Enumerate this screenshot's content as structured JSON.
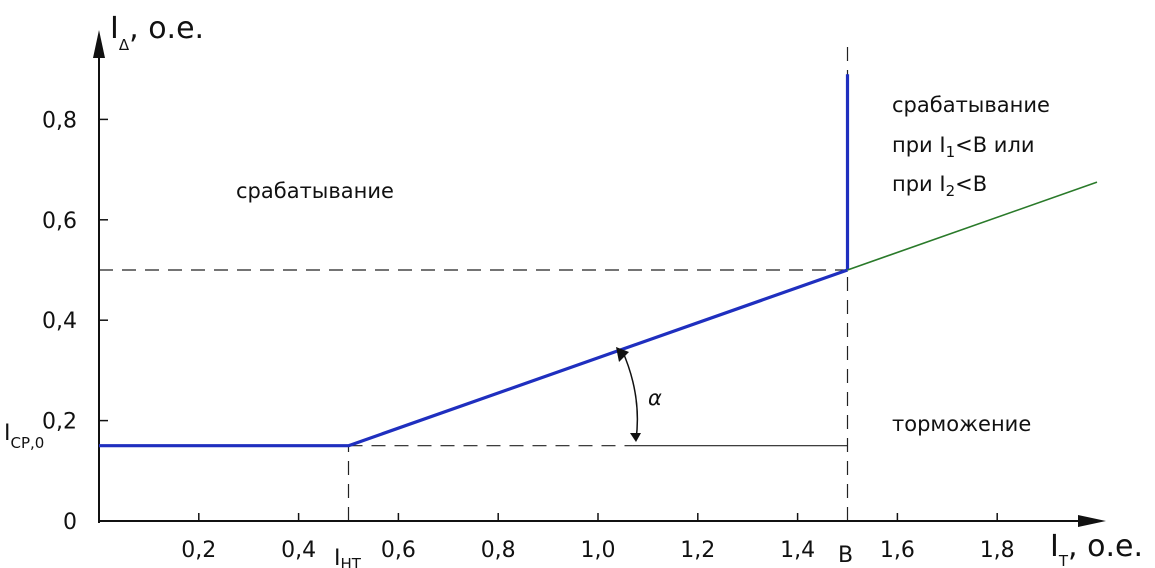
{
  "chart_data": {
    "type": "line",
    "xlim": [
      0,
      2.1
    ],
    "ylim": [
      0,
      0.9
    ],
    "x_ticks": [
      "0,2",
      "0,4",
      "0,6",
      "0,8",
      "1,0",
      "1,2",
      "1,4",
      "1,6",
      "1,8"
    ],
    "x_tick_values": [
      0.2,
      0.4,
      0.6,
      0.8,
      1.0,
      1.2,
      1.4,
      1.6,
      1.8
    ],
    "y_ticks": [
      "0",
      "0,2",
      "0,4",
      "0,6",
      "0,8"
    ],
    "y_tick_values": [
      0,
      0.2,
      0.4,
      0.6,
      0.8
    ],
    "x_axis_label": {
      "main": "I",
      "sub": "Т",
      "suffix": ", о.е."
    },
    "y_axis_label": {
      "main": "I",
      "sub": "Δ",
      "suffix": ", о.е."
    },
    "marker_labels": {
      "i_nt": {
        "main": "I",
        "sub": "НТ",
        "x": 0.5
      },
      "b": {
        "text": "B",
        "x": 1.5
      },
      "i_cp0": {
        "main": "I",
        "sub": "СР,0",
        "y": 0.15
      }
    },
    "series": [
      {
        "values": [
          [
            0,
            0.15
          ],
          [
            0.5,
            0.15
          ],
          [
            1.5,
            0.5
          ]
        ],
        "color": "#1f2fbf"
      },
      {
        "values": [
          [
            1.5,
            0.5
          ],
          [
            1.5,
            0.89
          ]
        ],
        "color": "#1f2fbf"
      },
      {
        "values": [
          [
            1.5,
            0.5
          ],
          [
            2.0,
            0.675
          ]
        ],
        "color": "#2a7a2a"
      }
    ],
    "guides": [
      {
        "from": [
          0,
          0.5
        ],
        "to": [
          1.5,
          0.5
        ],
        "style": "dashed"
      },
      {
        "from": [
          0.5,
          0.15
        ],
        "to": [
          1.5,
          0.15
        ],
        "style": "dashed-then-solid"
      },
      {
        "from": [
          0.5,
          0
        ],
        "to": [
          0.5,
          0.15
        ],
        "style": "dashed"
      },
      {
        "from": [
          1.5,
          0
        ],
        "to": [
          1.5,
          1.0
        ],
        "style": "dashed"
      }
    ],
    "annotations": {
      "operate_left": "срабатывание",
      "operate_right_1": "срабатывание",
      "operate_right_2_prefix": "при I",
      "operate_right_2_sub": "1",
      "operate_right_2_suffix": "<B или",
      "operate_right_3_prefix": "при I",
      "operate_right_3_sub": "2",
      "operate_right_3_suffix": "<B",
      "restraint": "торможение",
      "angle": "α"
    }
  }
}
